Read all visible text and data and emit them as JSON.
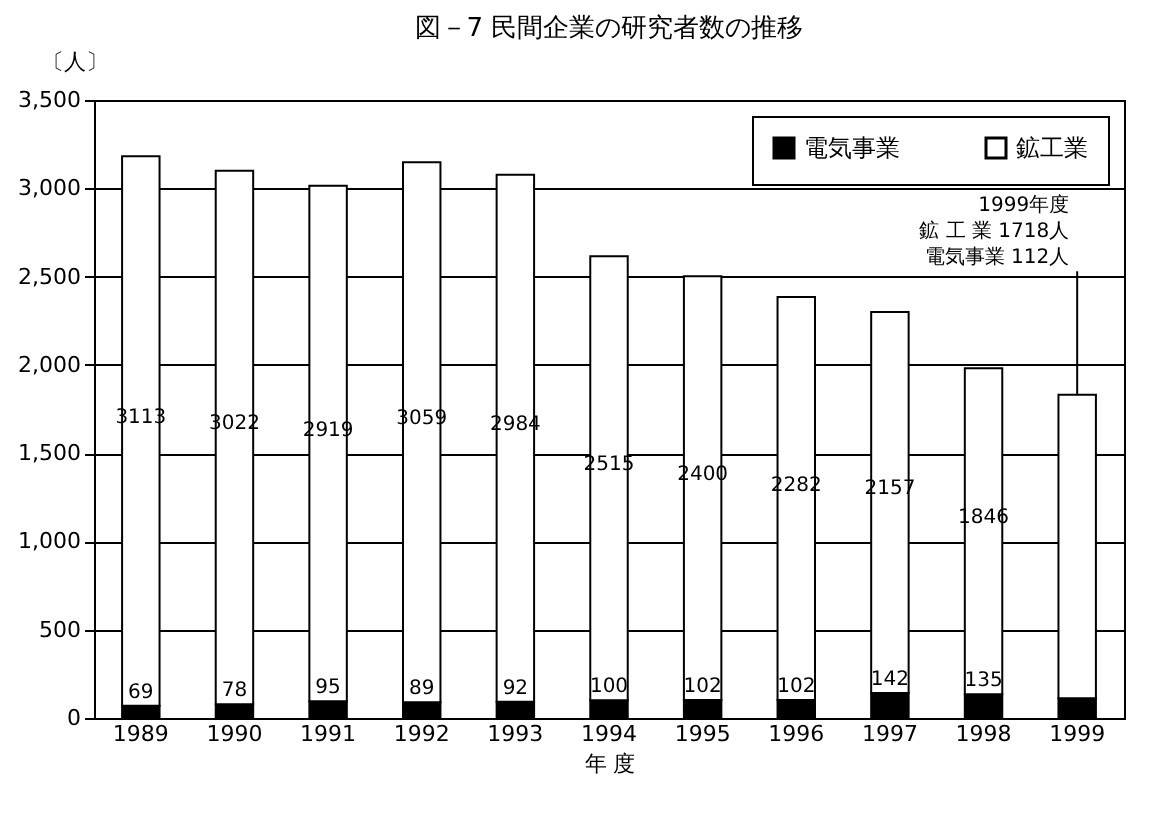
{
  "chart_data": {
    "type": "bar",
    "title": "図－7  民間企業の研究者数の推移",
    "xlabel": "年 度",
    "ylabel": "〔人〕",
    "categories": [
      "1989",
      "1990",
      "1991",
      "1992",
      "1993",
      "1994",
      "1995",
      "1996",
      "1997",
      "1998",
      "1999"
    ],
    "stacked": true,
    "series": [
      {
        "name": "電気事業",
        "color": "#000000",
        "values": [
          69,
          78,
          95,
          89,
          92,
          100,
          102,
          102,
          142,
          135,
          112
        ],
        "value_labels": [
          "69",
          "78",
          "95",
          "89",
          "92",
          "100",
          "102",
          "102",
          "142",
          "135",
          null
        ]
      },
      {
        "name": "鉱工業",
        "color": "#ffffff",
        "values": [
          3113,
          3022,
          2919,
          3059,
          2984,
          2515,
          2400,
          2282,
          2157,
          1846,
          1718
        ],
        "value_labels": [
          "3113",
          "3022",
          "2919",
          "3059",
          "2984",
          "2515",
          "2400",
          "2282",
          "2157",
          "1846",
          null
        ]
      }
    ],
    "ylim": [
      0,
      3500
    ],
    "yticks": [
      0,
      500,
      {
        "value": 1000,
        "label": "1,000"
      },
      {
        "value": 1500,
        "label": "1,500"
      },
      {
        "value": 2000,
        "label": "2,000"
      },
      {
        "value": 2500,
        "label": "2,500"
      },
      {
        "value": 3000,
        "label": "3,000"
      },
      {
        "value": 3500,
        "label": "3,500"
      }
    ],
    "grid": "y",
    "legend": "top right",
    "annotations": [
      "1999年度",
      "鉱 工 業 1718人",
      {
        "text": "電気事業 112人",
        "x": "1999",
        "y": 1830
      }
    ]
  }
}
